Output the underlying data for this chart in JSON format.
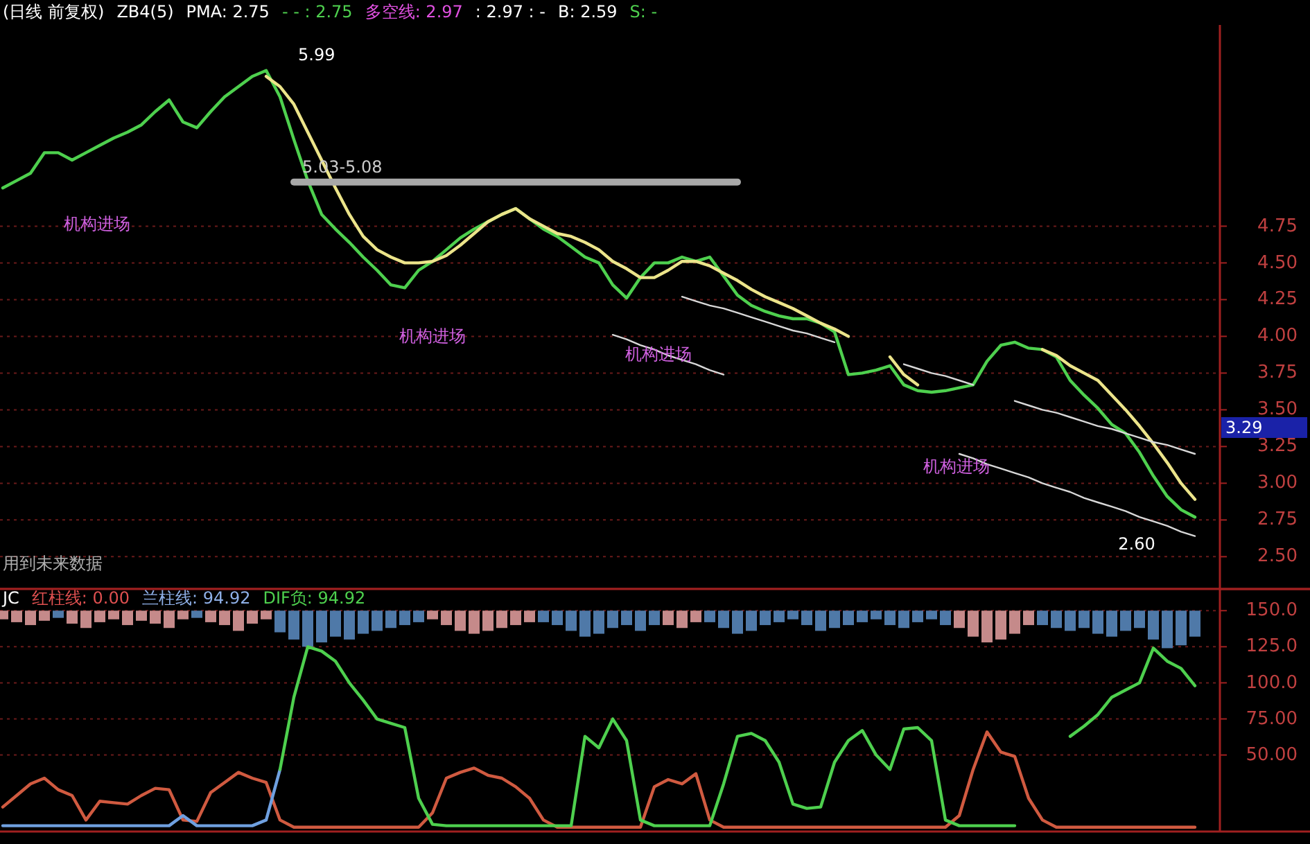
{
  "chart_data": [
    {
      "type": "line",
      "title": "(日线 前复权)",
      "subtitle": "用到未来数据",
      "annotations": [
        "ZB4(5)",
        "PMA: 2.75",
        "- - : 2.75",
        "多空线: 2.97",
        ": 2.97 : -",
        "B: 2.59",
        "S: -",
        "5.99",
        "5.03-5.08",
        "机构进场",
        "机构进场",
        "机构进场",
        "机构进场",
        "2.60",
        "3.29"
      ],
      "categories": [
        null,
        null,
        null,
        null,
        null,
        null,
        null,
        null,
        null,
        null,
        null,
        null,
        null,
        null,
        null,
        null,
        null,
        null,
        null,
        null,
        null,
        null,
        null,
        null,
        null,
        null,
        null,
        null,
        null,
        null,
        null,
        null,
        null,
        null,
        null,
        null,
        null,
        null,
        null,
        null,
        null,
        null,
        null,
        null,
        null,
        null,
        null,
        null,
        null,
        null,
        null,
        null,
        null,
        null,
        null,
        null,
        null,
        null,
        null,
        null,
        null,
        null,
        null,
        null,
        null,
        null,
        null,
        null,
        null,
        null,
        null,
        null,
        null,
        null,
        null,
        null,
        null,
        null,
        null,
        null,
        null,
        null,
        null,
        null,
        null,
        null,
        null
      ],
      "ylim": [
        2.28,
        6.12
      ],
      "yticks": [
        {
          "value": 2.5,
          "label": "2.50"
        },
        {
          "value": 2.75,
          "label": "2.75"
        },
        {
          "value": 3,
          "label": "3.00"
        },
        {
          "value": 3.25,
          "label": "3.25"
        },
        {
          "value": 3.5,
          "label": "3.50"
        },
        {
          "value": 3.75,
          "label": "3.75"
        },
        {
          "value": 4,
          "label": "4.00"
        },
        {
          "value": 4.25,
          "label": "4.25"
        },
        {
          "value": 4.5,
          "label": "4.50"
        },
        {
          "value": 4.75,
          "label": "4.75"
        }
      ],
      "grid": "y",
      "series": [
        {
          "color": "#4ed04e",
          "values": [
            5.01,
            5.06,
            5.11,
            5.25,
            5.25,
            5.2,
            5.25,
            5.3,
            5.35,
            5.39,
            5.44,
            5.53,
            5.61,
            5.46,
            5.42,
            5.53,
            5.63,
            5.7,
            5.77,
            5.81,
            5.63,
            5.34,
            5.06,
            4.83,
            4.73,
            4.64,
            4.54,
            4.45,
            4.35,
            4.33,
            4.45,
            4.51,
            4.59,
            4.67,
            4.73,
            4.78,
            4.83,
            4.87,
            4.8,
            4.73,
            4.68,
            4.61,
            4.54,
            4.5,
            4.35,
            4.26,
            4.4,
            4.5,
            4.5,
            4.54,
            4.51,
            4.54,
            4.41,
            4.28,
            4.21,
            4.17,
            4.14,
            4.12,
            4.12,
            4.09,
            4.03,
            3.74,
            3.75,
            3.77,
            3.8,
            3.67,
            3.63,
            3.62,
            3.63,
            3.65,
            3.67,
            3.83,
            3.94,
            3.96,
            3.92,
            3.91,
            3.86,
            3.7,
            3.6,
            3.51,
            3.4,
            3.34,
            3.21,
            3.05,
            2.91,
            2.82,
            2.77
          ]
        },
        {
          "color": "#ece48a",
          "values": [
            null,
            null,
            null,
            null,
            null,
            null,
            null,
            null,
            null,
            null,
            null,
            null,
            null,
            null,
            null,
            null,
            null,
            null,
            null,
            5.77,
            5.7,
            5.58,
            5.39,
            5.2,
            5.01,
            4.83,
            4.68,
            4.59,
            4.54,
            4.5,
            4.5,
            4.51,
            4.55,
            4.62,
            4.7,
            4.78,
            4.83,
            4.87,
            4.8,
            4.75,
            4.7,
            4.68,
            4.64,
            4.59,
            4.51,
            4.46,
            4.4,
            4.4,
            4.45,
            4.51,
            4.51,
            4.48,
            4.43,
            4.38,
            4.32,
            4.27,
            4.23,
            4.19,
            4.14,
            4.09,
            4.05,
            4.0,
            null,
            null,
            3.86,
            3.74,
            3.67,
            null,
            null,
            null,
            null,
            null,
            null,
            null,
            null,
            3.91,
            3.87,
            3.8,
            3.75,
            3.7,
            3.6,
            3.5,
            3.39,
            3.27,
            3.14,
            3.0,
            2.89
          ]
        },
        {
          "color": "#a8a8a8",
          "values": [
            null,
            null,
            null,
            null,
            null,
            null,
            null,
            null,
            null,
            null,
            null,
            null,
            null,
            null,
            null,
            null,
            null,
            null,
            null,
            null,
            null,
            5.05,
            5.05,
            5.05,
            5.05,
            5.05,
            5.05,
            5.05,
            5.05,
            5.05,
            5.05,
            5.05,
            5.05,
            5.05,
            5.05,
            5.05,
            5.05,
            5.05,
            5.05,
            5.05,
            5.05,
            5.05,
            5.05,
            5.05,
            5.05,
            5.05,
            5.05,
            5.05,
            5.05,
            5.05,
            5.05,
            5.05,
            5.05,
            5.05,
            null,
            null,
            null,
            null,
            null,
            null,
            null,
            null,
            null,
            null,
            null,
            null,
            null,
            null,
            null,
            null,
            null,
            null,
            null,
            null,
            null,
            null,
            null,
            null,
            null,
            null,
            null,
            null,
            null,
            null,
            null,
            null,
            null
          ]
        },
        {
          "color": "#d8d8d8",
          "values": [
            null,
            null,
            null,
            null,
            null,
            null,
            null,
            null,
            null,
            null,
            null,
            null,
            null,
            null,
            null,
            null,
            null,
            null,
            null,
            null,
            null,
            null,
            null,
            null,
            null,
            null,
            null,
            null,
            null,
            null,
            null,
            null,
            null,
            null,
            null,
            null,
            null,
            null,
            null,
            null,
            null,
            null,
            null,
            null,
            4.01,
            3.98,
            3.94,
            3.91,
            3.87,
            3.84,
            3.81,
            3.77,
            3.74,
            null,
            null,
            null,
            null,
            null,
            null,
            null,
            null,
            null,
            null,
            null,
            null,
            null,
            null,
            null,
            null,
            null,
            null,
            null,
            null,
            null,
            null,
            null,
            null,
            null,
            null,
            null,
            null,
            null,
            null,
            null,
            null,
            null,
            null
          ]
        },
        {
          "color": "#d8d8d8",
          "values": [
            null,
            null,
            null,
            null,
            null,
            null,
            null,
            null,
            null,
            null,
            null,
            null,
            null,
            null,
            null,
            null,
            null,
            null,
            null,
            null,
            null,
            null,
            null,
            null,
            null,
            null,
            null,
            null,
            null,
            null,
            null,
            null,
            null,
            null,
            null,
            null,
            null,
            null,
            null,
            null,
            null,
            null,
            null,
            null,
            null,
            null,
            null,
            null,
            null,
            4.27,
            4.24,
            4.21,
            4.19,
            4.16,
            4.13,
            4.1,
            4.07,
            4.04,
            4.02,
            3.99,
            3.96,
            null,
            null,
            null,
            null,
            null,
            null,
            null,
            null,
            null,
            null,
            null,
            null,
            null,
            null,
            null,
            null,
            null,
            null,
            null,
            null,
            null,
            null,
            null,
            null,
            null,
            null
          ]
        },
        {
          "color": "#d8d8d8",
          "values": [
            null,
            null,
            null,
            null,
            null,
            null,
            null,
            null,
            null,
            null,
            null,
            null,
            null,
            null,
            null,
            null,
            null,
            null,
            null,
            null,
            null,
            null,
            null,
            null,
            null,
            null,
            null,
            null,
            null,
            null,
            null,
            null,
            null,
            null,
            null,
            null,
            null,
            null,
            null,
            null,
            null,
            null,
            null,
            null,
            null,
            null,
            null,
            null,
            null,
            null,
            null,
            null,
            null,
            null,
            null,
            null,
            null,
            null,
            null,
            null,
            null,
            null,
            null,
            null,
            null,
            3.81,
            3.78,
            3.75,
            3.73,
            3.7,
            3.67,
            null,
            null,
            null,
            null,
            null,
            null,
            null,
            null,
            null,
            null,
            null,
            null,
            null,
            null,
            null,
            null
          ]
        },
        {
          "color": "#d8d8d8",
          "values": [
            null,
            null,
            null,
            null,
            null,
            null,
            null,
            null,
            null,
            null,
            null,
            null,
            null,
            null,
            null,
            null,
            null,
            null,
            null,
            null,
            null,
            null,
            null,
            null,
            null,
            null,
            null,
            null,
            null,
            null,
            null,
            null,
            null,
            null,
            null,
            null,
            null,
            null,
            null,
            null,
            null,
            null,
            null,
            null,
            null,
            null,
            null,
            null,
            null,
            null,
            null,
            null,
            null,
            null,
            null,
            null,
            null,
            null,
            null,
            null,
            null,
            null,
            null,
            null,
            null,
            null,
            null,
            null,
            null,
            null,
            null,
            null,
            null,
            3.56,
            3.53,
            3.5,
            3.48,
            3.45,
            3.42,
            3.39,
            3.37,
            3.34,
            3.31,
            3.28,
            3.26,
            3.23,
            3.2
          ]
        },
        {
          "color": "#d8d8d8",
          "values": [
            null,
            null,
            null,
            null,
            null,
            null,
            null,
            null,
            null,
            null,
            null,
            null,
            null,
            null,
            null,
            null,
            null,
            null,
            null,
            null,
            null,
            null,
            null,
            null,
            null,
            null,
            null,
            null,
            null,
            null,
            null,
            null,
            null,
            null,
            null,
            null,
            null,
            null,
            null,
            null,
            null,
            null,
            null,
            null,
            null,
            null,
            null,
            null,
            null,
            null,
            null,
            null,
            null,
            null,
            null,
            null,
            null,
            null,
            null,
            null,
            null,
            null,
            null,
            null,
            null,
            null,
            null,
            null,
            null,
            3.2,
            3.17,
            3.13,
            3.1,
            3.07,
            3.04,
            3.0,
            2.97,
            2.94,
            2.9,
            2.87,
            2.84,
            2.81,
            2.77,
            2.74,
            2.71,
            2.67,
            2.64
          ]
        }
      ]
    },
    {
      "type": "line",
      "title": "JC",
      "annotations": [
        "红柱线: 0.00",
        "兰柱线: 94.92",
        "DIF负: 94.92"
      ],
      "categories": [
        null,
        null,
        null,
        null,
        null,
        null,
        null,
        null,
        null,
        null,
        null,
        null,
        null,
        null,
        null,
        null,
        null,
        null,
        null,
        null,
        null,
        null,
        null,
        null,
        null,
        null,
        null,
        null,
        null,
        null,
        null,
        null,
        null,
        null,
        null,
        null,
        null,
        null,
        null,
        null,
        null,
        null,
        null,
        null,
        null,
        null,
        null,
        null,
        null,
        null,
        null,
        null,
        null,
        null,
        null,
        null,
        null,
        null,
        null,
        null,
        null,
        null,
        null,
        null,
        null,
        null,
        null,
        null,
        null,
        null,
        null,
        null,
        null,
        null,
        null,
        null,
        null,
        null,
        null,
        null,
        null,
        null,
        null,
        null,
        null,
        null,
        null
      ],
      "ylim": [
        -3,
        165
      ],
      "yticks": [
        {
          "value": 50,
          "label": "50.00"
        },
        {
          "value": 75,
          "label": "75.00"
        },
        {
          "value": 100,
          "label": "100.0"
        },
        {
          "value": 125,
          "label": "125.0"
        },
        {
          "value": 150,
          "label": "150.0"
        }
      ],
      "grid": "y",
      "series": [
        {
          "type": "bar",
          "base": [
            150,
            150,
            150,
            150,
            150,
            150,
            150,
            150,
            150,
            150,
            150,
            150,
            150,
            150,
            150,
            150,
            150,
            150,
            150,
            150,
            150,
            150,
            150,
            150,
            150,
            150,
            150,
            150,
            150,
            150,
            150,
            150,
            150,
            150,
            150,
            150,
            150,
            150,
            150,
            150,
            150,
            150,
            150,
            150,
            150,
            150,
            150,
            150,
            150,
            150,
            150,
            150,
            150,
            150,
            150,
            150,
            150,
            150,
            150,
            150,
            150,
            150,
            150,
            150,
            150,
            150,
            150,
            150,
            150,
            150,
            150,
            150,
            150,
            150,
            150,
            150,
            150,
            150,
            150,
            150,
            150,
            150,
            150,
            150,
            150,
            150,
            150
          ],
          "values": [
            -6,
            -8,
            -10,
            -7,
            -5,
            -9,
            -12,
            -8,
            -6,
            -10,
            -7,
            -9,
            -12,
            -6,
            -5,
            -8,
            -10,
            -14,
            -9,
            -6,
            -15,
            -20,
            -25,
            -22,
            -18,
            -20,
            -16,
            -14,
            -12,
            -10,
            -8,
            -6,
            -10,
            -14,
            -16,
            -14,
            -12,
            -10,
            -8,
            -8,
            -10,
            -14,
            -18,
            -16,
            -12,
            -10,
            -14,
            -10,
            -10,
            -12,
            -8,
            -8,
            -12,
            -16,
            -14,
            -10,
            -8,
            -6,
            -10,
            -14,
            -12,
            -10,
            -8,
            -6,
            -10,
            -12,
            -8,
            -6,
            -10,
            -12,
            -18,
            -22,
            -20,
            -16,
            -10,
            -10,
            -12,
            -14,
            -12,
            -16,
            -18,
            -14,
            -12,
            -20,
            -26,
            -24,
            -18
          ],
          "colors": [
            "#c58a8a",
            "#c58a8a",
            "#c58a8a",
            "#c58a8a",
            "#4f79a8",
            "#c58a8a",
            "#c58a8a",
            "#c58a8a",
            "#c58a8a",
            "#c58a8a",
            "#c58a8a",
            "#c58a8a",
            "#c58a8a",
            "#c58a8a",
            "#4f79a8",
            "#c58a8a",
            "#c58a8a",
            "#c58a8a",
            "#c58a8a",
            "#c58a8a",
            "#4f79a8",
            "#4f79a8",
            "#4f79a8",
            "#4f79a8",
            "#4f79a8",
            "#4f79a8",
            "#4f79a8",
            "#4f79a8",
            "#4f79a8",
            "#4f79a8",
            "#4f79a8",
            "#c58a8a",
            "#c58a8a",
            "#c58a8a",
            "#c58a8a",
            "#c58a8a",
            "#c58a8a",
            "#c58a8a",
            "#c58a8a",
            "#4f79a8",
            "#4f79a8",
            "#4f79a8",
            "#4f79a8",
            "#4f79a8",
            "#4f79a8",
            "#4f79a8",
            "#4f79a8",
            "#4f79a8",
            "#c58a8a",
            "#c58a8a",
            "#c58a8a",
            "#4f79a8",
            "#4f79a8",
            "#4f79a8",
            "#4f79a8",
            "#4f79a8",
            "#4f79a8",
            "#4f79a8",
            "#4f79a8",
            "#4f79a8",
            "#4f79a8",
            "#4f79a8",
            "#4f79a8",
            "#4f79a8",
            "#4f79a8",
            "#4f79a8",
            "#4f79a8",
            "#4f79a8",
            "#4f79a8",
            "#c58a8a",
            "#c58a8a",
            "#c58a8a",
            "#c58a8a",
            "#c58a8a",
            "#c58a8a",
            "#4f79a8",
            "#4f79a8",
            "#4f79a8",
            "#4f79a8",
            "#4f79a8",
            "#4f79a8",
            "#4f79a8",
            "#4f79a8",
            "#4f79a8",
            "#4f79a8",
            "#4f79a8",
            "#4f79a8"
          ]
        },
        {
          "color": "#d05a40",
          "values": [
            14,
            22,
            30,
            34,
            26,
            22,
            5,
            18,
            17,
            16,
            22,
            27,
            26,
            5,
            4,
            24,
            31,
            38,
            34,
            31,
            5,
            0,
            0,
            0,
            0,
            0,
            0,
            0,
            0,
            0,
            0,
            10,
            34,
            38,
            41,
            36,
            34,
            28,
            20,
            5,
            0,
            0,
            0,
            0,
            0,
            0,
            0,
            28,
            33,
            30,
            37,
            5,
            0,
            0,
            0,
            0,
            0,
            0,
            0,
            0,
            0,
            0,
            0,
            0,
            0,
            0,
            0,
            0,
            0,
            8,
            40,
            66,
            52,
            49,
            20,
            5,
            0,
            0,
            0,
            0,
            0,
            0,
            0,
            0,
            0,
            0,
            0
          ]
        },
        {
          "color": "#6fa0e0",
          "values": [
            1,
            1,
            1,
            1,
            1,
            1,
            1,
            1,
            1,
            1,
            1,
            1,
            1,
            8,
            1,
            1,
            1,
            1,
            1,
            5,
            40,
            null,
            null,
            null,
            null,
            null,
            null,
            null,
            null,
            null,
            null,
            null,
            null,
            null,
            null,
            null,
            null,
            null,
            null,
            null,
            null,
            null,
            null,
            null,
            null,
            null,
            null,
            null,
            null,
            null,
            null,
            null,
            null,
            null,
            null,
            null,
            null,
            null,
            null,
            null,
            null,
            null,
            null,
            null,
            null,
            null,
            null,
            null,
            null,
            null,
            null,
            null,
            null,
            null,
            null,
            null,
            null,
            null,
            null,
            null,
            null,
            null,
            null,
            null,
            null,
            null,
            null
          ]
        },
        {
          "color": "#4ed04e",
          "values": [
            null,
            null,
            null,
            null,
            null,
            null,
            null,
            null,
            null,
            null,
            null,
            null,
            null,
            null,
            null,
            null,
            null,
            null,
            null,
            null,
            40,
            90,
            125,
            122,
            115,
            100,
            88,
            75,
            72,
            69,
            20,
            2,
            1,
            1,
            1,
            1,
            1,
            1,
            1,
            1,
            1,
            1,
            63,
            55,
            75,
            60,
            5,
            1,
            1,
            1,
            1,
            1,
            30,
            63,
            65,
            60,
            45,
            16,
            13,
            14,
            45,
            60,
            67,
            50,
            40,
            68,
            69,
            60,
            5,
            1,
            1,
            1,
            1,
            1,
            null,
            null,
            null,
            63,
            70,
            78,
            90,
            95,
            100,
            124,
            115,
            110,
            98
          ]
        }
      ]
    }
  ]
}
